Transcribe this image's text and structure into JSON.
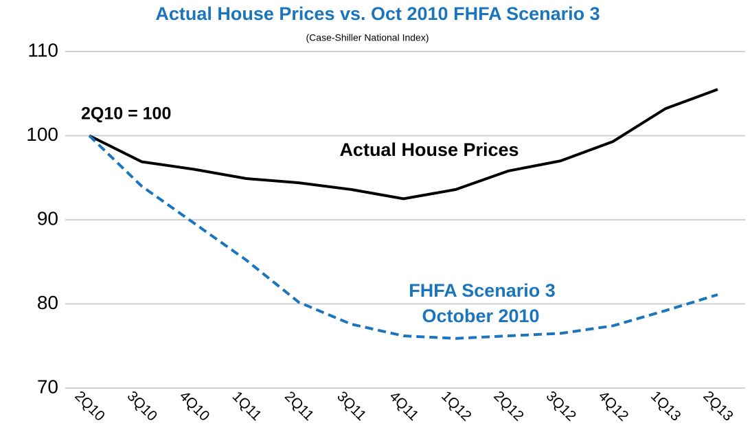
{
  "chart_data": {
    "type": "line",
    "title": "Actual House Prices vs. Oct 2010 FHFA Scenario 3",
    "subtitle": "(Case-Shiller National Index)",
    "categories": [
      "2Q10",
      "3Q10",
      "4Q10",
      "1Q11",
      "2Q11",
      "3Q11",
      "4Q11",
      "1Q12",
      "2Q12",
      "3Q12",
      "4Q12",
      "1Q13",
      "2Q13"
    ],
    "series": [
      {
        "name": "Actual House Prices",
        "color": "#000000",
        "dashed": false,
        "values": [
          100,
          96.9,
          96.0,
          94.9,
          94.4,
          93.6,
          92.5,
          93.6,
          95.8,
          97.0,
          99.3,
          103.2,
          105.5
        ]
      },
      {
        "name": "FHFA Scenario 3",
        "color": "#1b75bc",
        "dashed": true,
        "values": [
          100,
          94.0,
          89.6,
          85.2,
          80.2,
          77.6,
          76.2,
          75.9,
          76.2,
          76.5,
          77.4,
          79.2,
          81.1
        ]
      }
    ],
    "annotations": [
      "2Q10 = 100",
      "October 2010"
    ],
    "ylim": [
      70,
      110
    ],
    "yticks": [
      70,
      80,
      90,
      100,
      110
    ],
    "grid": true
  }
}
